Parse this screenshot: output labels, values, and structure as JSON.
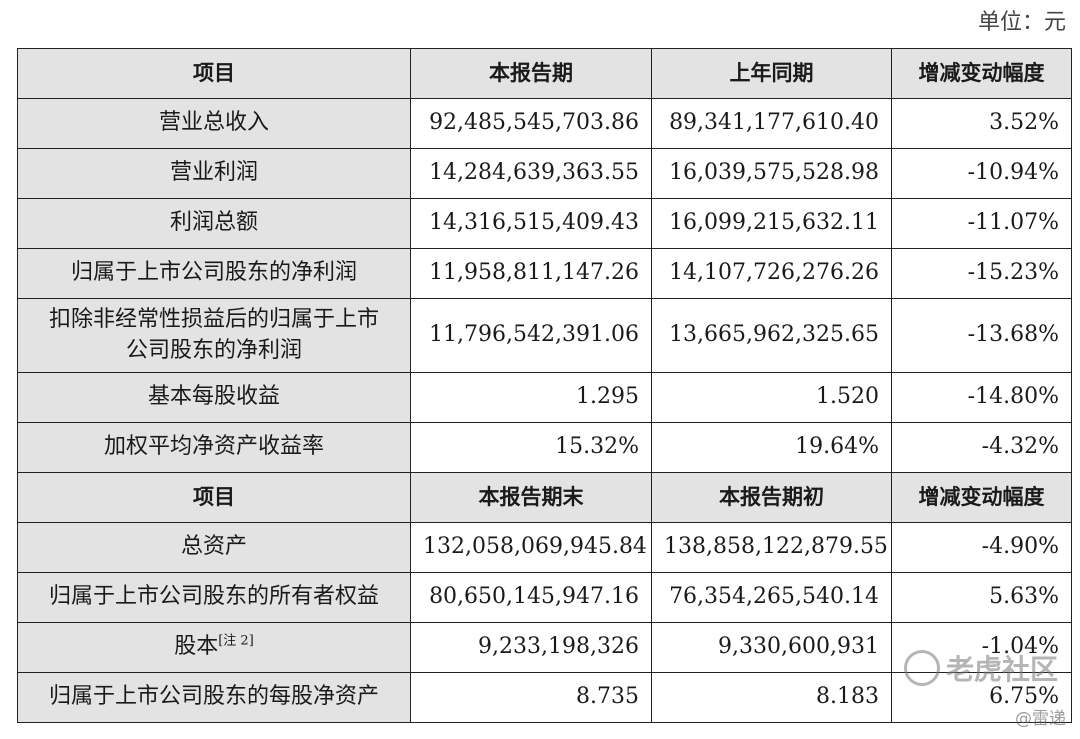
{
  "unit_label": "单位：元",
  "section1": {
    "headers": [
      "项目",
      "本报告期",
      "上年同期",
      "增减变动幅度"
    ],
    "rows": [
      {
        "label": "营业总收入",
        "current": "92,485,545,703.86",
        "prior": "89,341,177,610.40",
        "change": "3.52%"
      },
      {
        "label": "营业利润",
        "current": "14,284,639,363.55",
        "prior": "16,039,575,528.98",
        "change": "-10.94%"
      },
      {
        "label": "利润总额",
        "current": "14,316,515,409.43",
        "prior": "16,099,215,632.11",
        "change": "-11.07%"
      },
      {
        "label": "归属于上市公司股东的净利润",
        "current": "11,958,811,147.26",
        "prior": "14,107,726,276.26",
        "change": "-15.23%"
      },
      {
        "label_line1": "扣除非经常性损益后的归属于上市",
        "label_line2": "公司股东的净利润",
        "current": "11,796,542,391.06",
        "prior": "13,665,962,325.65",
        "change": "-13.68%"
      },
      {
        "label": "基本每股收益",
        "current": "1.295",
        "prior": "1.520",
        "change": "-14.80%"
      },
      {
        "label": "加权平均净资产收益率",
        "current": "15.32%",
        "prior": "19.64%",
        "change": "-4.32%"
      }
    ]
  },
  "section2": {
    "headers": [
      "项目",
      "本报告期末",
      "本报告期初",
      "增减变动幅度"
    ],
    "rows": [
      {
        "label": "总资产",
        "current": "132,058,069,945.84",
        "prior": "138,858,122,879.55",
        "change": "-4.90%"
      },
      {
        "label": "归属于上市公司股东的所有者权益",
        "current": "80,650,145,947.16",
        "prior": "76,354,265,540.14",
        "change": "5.63%"
      },
      {
        "label": "股本",
        "note": "[注 2]",
        "current": "9,233,198,326",
        "prior": "9,330,600,931",
        "change": "-1.04%"
      },
      {
        "label": "归属于上市公司股东的每股净资产",
        "current": "8.735",
        "prior": "8.183",
        "change": "6.75%"
      }
    ]
  },
  "watermark": {
    "text": "老虎社区",
    "sub": "@雷递"
  }
}
